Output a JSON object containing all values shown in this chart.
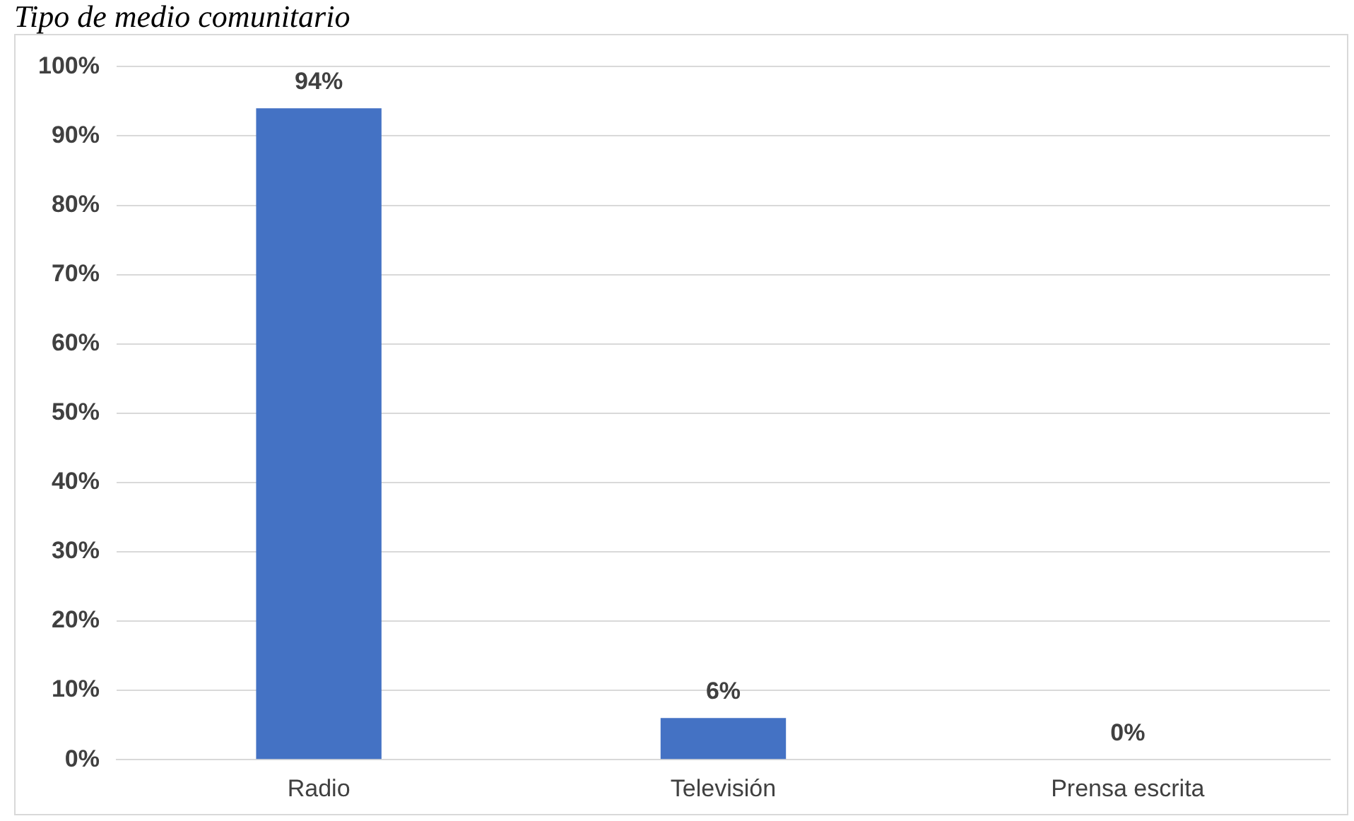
{
  "chart_data": {
    "type": "bar",
    "title": "Tipo de medio comunitario",
    "categories": [
      "Radio",
      "Televisión",
      "Prensa escrita"
    ],
    "values": [
      94,
      6,
      0
    ],
    "color": "#4472c4",
    "value_labels": [
      "94%",
      "6%",
      "0%"
    ],
    "ylim": [
      0,
      100
    ],
    "yticks": [
      {
        "value": 0,
        "label": "0%"
      },
      {
        "value": 10,
        "label": "10%"
      },
      {
        "value": 20,
        "label": "20%"
      },
      {
        "value": 30,
        "label": "30%"
      },
      {
        "value": 40,
        "label": "40%"
      },
      {
        "value": 50,
        "label": "50%"
      },
      {
        "value": 60,
        "label": "60%"
      },
      {
        "value": 70,
        "label": "70%"
      },
      {
        "value": 80,
        "label": "80%"
      },
      {
        "value": 90,
        "label": "90%"
      },
      {
        "value": 100,
        "label": "100%"
      }
    ],
    "grid": "y",
    "legend": false
  }
}
